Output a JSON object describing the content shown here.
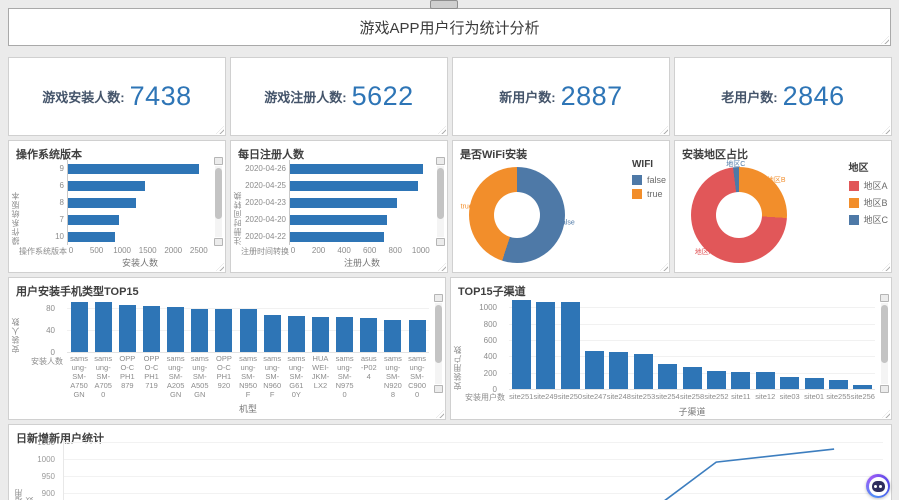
{
  "page": {
    "title": "游戏APP用户行为统计分析"
  },
  "colors": {
    "bar_blue": "#2e75b6",
    "kpi_value_blue": "#2e75b6",
    "kpi_label_navy": "#44546a",
    "donut_blue": "#4e79a7",
    "donut_orange": "#f28e2b",
    "donut_red": "#e15759",
    "line_blue": "#3d7ebf"
  },
  "kpis": [
    {
      "label": "游戏安装人数:",
      "value": "7438"
    },
    {
      "label": "游戏注册人数:",
      "value": "5622"
    },
    {
      "label": "新用户数:",
      "value": "2887"
    },
    {
      "label": "老用户数:",
      "value": "2846"
    }
  ],
  "chart_data": [
    {
      "id": "os-version",
      "type": "bar",
      "orientation": "horizontal",
      "title": "操作系统版本",
      "ylabel": "操作系统版本",
      "xlabel": "安装人数",
      "axis_footer": "操作系统版本",
      "categories": [
        "9",
        "6",
        "8",
        "7",
        "10"
      ],
      "values": [
        2500,
        1480,
        1300,
        970,
        900
      ],
      "xticks": [
        0,
        500,
        1000,
        1500,
        2000,
        2500
      ],
      "xlim": [
        0,
        2700
      ],
      "scale_max": 2700
    },
    {
      "id": "daily-register",
      "type": "bar",
      "orientation": "horizontal",
      "title": "每日注册人数",
      "ylabel": "注册时间转换",
      "xlabel": "注册人数",
      "axis_footer": "注册时间转换",
      "categories": [
        "2020-04-26",
        "2020-04-25",
        "2020-04-23",
        "2020-04-20",
        "2020-04-22"
      ],
      "values": [
        1020,
        980,
        820,
        740,
        720
      ],
      "xticks": [
        0,
        200,
        400,
        600,
        800,
        1000
      ],
      "xlim": [
        0,
        1080
      ],
      "scale_max": 1080
    },
    {
      "id": "wifi-install",
      "type": "pie",
      "title": "是否WiFi安装",
      "legend_title": "WIFI",
      "legend_position": "right",
      "slices": [
        {
          "label": "false",
          "value": 55,
          "color": "#4e79a7"
        },
        {
          "label": "true",
          "value": 45,
          "color": "#f28e2b"
        }
      ]
    },
    {
      "id": "install-region",
      "type": "pie",
      "title": "安装地区占比",
      "legend_title": "地区",
      "legend_position": "right",
      "slices": [
        {
          "label": "地区B",
          "value": 26,
          "color": "#f28e2b"
        },
        {
          "label": "地区A",
          "value": 72,
          "color": "#e15759"
        },
        {
          "label": "地区C",
          "value": 2,
          "color": "#4e79a7"
        }
      ]
    },
    {
      "id": "phone-top15",
      "type": "bar",
      "orientation": "vertical",
      "title": "用户安装手机类型TOP15",
      "ylabel": "安装人数",
      "xlabel": "机型",
      "axis_footer": "安装人数",
      "categories": [
        "samsung-SM-A750GN",
        "samsung-SM-A7050",
        "OPPO-CPH1879",
        "OPPO-CPH1719",
        "samsung-SM-A205GN",
        "samsung-SM-A505GN",
        "OPPO-CPH1920",
        "samsung-SM-N950F",
        "samsung-SM-N960F",
        "samsung-SM-G610Y",
        "HUAWEI-JKM-LX2",
        "samsung-SM-N9750",
        "asus-P024",
        "samsung-SM-N9208",
        "samsung-SM-C9000"
      ],
      "values": [
        91,
        90,
        85,
        83,
        81,
        78,
        78,
        78,
        67,
        65,
        64,
        64,
        61,
        58,
        58
      ],
      "yticks": [
        0,
        40,
        80
      ],
      "ylim": [
        0,
        100
      ],
      "scale_max": 100
    },
    {
      "id": "channel-top15",
      "type": "bar",
      "orientation": "vertical",
      "title": "TOP15子渠道",
      "ylabel": "安装用户数",
      "xlabel": "子渠道",
      "axis_footer": "安装用户数",
      "categories": [
        "site251",
        "site249",
        "site250",
        "site247",
        "site248",
        "site253",
        "site254",
        "site258",
        "site252",
        "site11",
        "site12",
        "site03",
        "site01",
        "site255",
        "site256"
      ],
      "values": [
        1090,
        1070,
        1060,
        460,
        450,
        430,
        310,
        270,
        215,
        210,
        205,
        150,
        130,
        115,
        55
      ],
      "yticks": [
        0,
        200,
        400,
        600,
        800,
        1000
      ],
      "ylim": [
        0,
        1150
      ],
      "scale_max": 1150
    },
    {
      "id": "daily-new-users",
      "type": "line",
      "title": "日新增新用户统计",
      "ylabel": "新增用户数",
      "yticks": [
        1050,
        1000,
        950,
        900
      ],
      "points": [
        {
          "x_frac": 0.724,
          "value": 876
        },
        {
          "x_frac": 0.787,
          "value": 991
        },
        {
          "x_frac": 0.929,
          "value": 1029
        }
      ],
      "note_axis_clipped": true
    }
  ]
}
